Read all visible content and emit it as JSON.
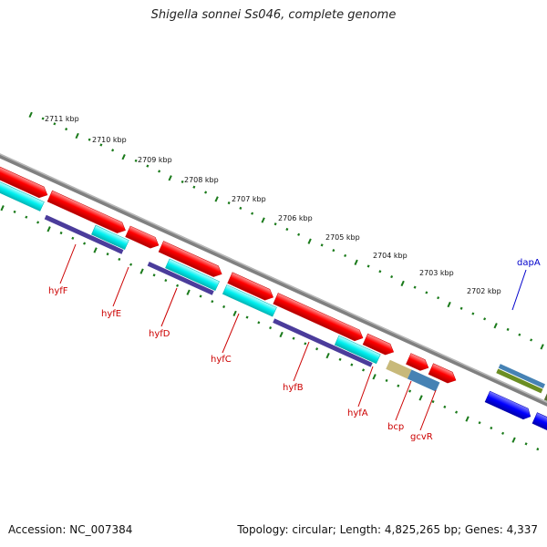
{
  "title": "Shigella sonnei Ss046, complete genome",
  "accession": "Accession: NC_007384",
  "summary": "Topology: circular; Length: 4,825,265 bp; Genes: 4,337",
  "ruler": {
    "labels": [
      "2711 kbp",
      "2710 kbp",
      "2709 kbp",
      "2708 kbp",
      "2707 kbp",
      "2706 kbp",
      "2705 kbp",
      "2704 kbp",
      "2703 kbp",
      "2702 kbp"
    ]
  },
  "genes": [
    {
      "name": "hyfF",
      "color": "#cc0000"
    },
    {
      "name": "hyfE",
      "color": "#cc0000"
    },
    {
      "name": "hyfD",
      "color": "#cc0000"
    },
    {
      "name": "hyfC",
      "color": "#cc0000"
    },
    {
      "name": "hyfB",
      "color": "#cc0000"
    },
    {
      "name": "hyfA",
      "color": "#cc0000"
    },
    {
      "name": "bcp",
      "color": "#cc0000"
    },
    {
      "name": "gcvR",
      "color": "#cc0000"
    },
    {
      "name": "dapA",
      "color": "#0000cc"
    }
  ],
  "colors": {
    "backbone": "#808080",
    "cds": "#ff0000",
    "cds_light": "#00ffff",
    "feature_dark": "#4b3c9b",
    "feature_blue": "#0000ff",
    "feature_steel": "#4682b4",
    "feature_olive": "#556b2f",
    "feature_tan": "#c8b97a",
    "tick": "#1a7a1a"
  }
}
